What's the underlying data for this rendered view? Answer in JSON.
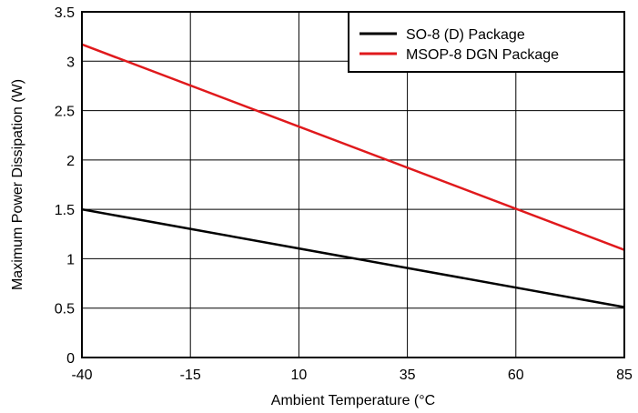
{
  "chart_data": {
    "type": "line",
    "title": "",
    "xlabel": "Ambient Temperature (°C",
    "ylabel": "Maximum Power Dissipation (W)",
    "xlim": [
      -40,
      85
    ],
    "ylim": [
      0,
      3.5
    ],
    "x_ticks": [
      "-40",
      "-15",
      "10",
      "35",
      "60",
      "85"
    ],
    "y_ticks": [
      "0",
      "0.5",
      "1",
      "1.5",
      "2",
      "2.5",
      "3",
      "3.5"
    ],
    "x_tick_values": [
      -40,
      -15,
      10,
      35,
      60,
      85
    ],
    "y_tick_values": [
      0,
      0.5,
      1,
      1.5,
      2,
      2.5,
      3,
      3.5
    ],
    "grid": true,
    "legend_position": "top-right",
    "series": [
      {
        "name": "SO-8 (D) Package",
        "color": "#000000",
        "x": [
          -40,
          85
        ],
        "y": [
          1.5,
          0.51
        ]
      },
      {
        "name": "MSOP-8 DGN Package",
        "color": "#e0191c",
        "x": [
          -40,
          85
        ],
        "y": [
          3.17,
          1.09
        ]
      }
    ]
  }
}
